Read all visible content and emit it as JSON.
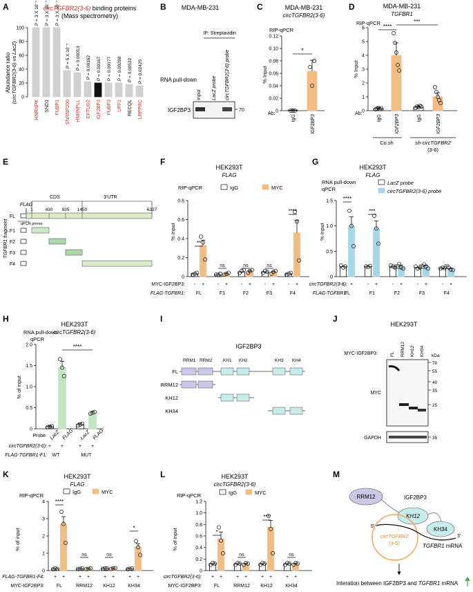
{
  "colors": {
    "orange": "#f2bd85",
    "green": "#c1e6c1",
    "blue": "#a7d7e6",
    "red": "#d7301f",
    "gray": "#d0d0d0",
    "black": "#111111",
    "cyan": "#c7ecec",
    "lavender": "#c9c8e6",
    "fragGreen": "#cfe8c8",
    "utrGreen": "#dcebc9"
  },
  "panels": {
    "A": {
      "letter": "A",
      "title_italic": "circTGFBR2(3-6)",
      "title_rest": " binding proteins",
      "title_line2": "(Mass spectrometry)",
      "ylabel1": "Abundance ratio",
      "ylabel2_italic": "(circTGFBR2(3-6)",
      "ylabel2_rest": " vs ",
      "ylabel2_lacz": "LacZ",
      "ylabel2_end": ")",
      "ticks": [
        "0",
        "20",
        "40",
        "60",
        "80",
        "100"
      ]
    },
    "B": {
      "letter": "B",
      "cell": "MDA-MB-231",
      "ip": "IP: Streptavidin",
      "lane_input": "Input",
      "lane_lacz": "LacZ probe",
      "lane_circ": "circTGFBR2(3-6) probe",
      "method": "RNA pull-down",
      "protein": "IGF2BP3",
      "marker": "70"
    },
    "C": {
      "letter": "C",
      "cell": "MDA-MB-231",
      "gene": "circTGFBR2(3-6)",
      "assay": "RIP-qPCR",
      "ylabel": "% Input",
      "ticks": [
        "0",
        "0.02",
        "0.04",
        "0.06",
        "0.08",
        "0.10",
        "0.12"
      ],
      "ab_label": "Ab:",
      "sig": "*",
      "categories": [
        "IgG",
        "IGF2BP3"
      ]
    },
    "D": {
      "letter": "D",
      "cell": "MDA-MB-231",
      "gene": "TGFBR1",
      "assay": "RIP-qPCR",
      "ylabel": "% Input",
      "ticks": [
        "0",
        "1",
        "2",
        "3",
        "4",
        "5",
        "6"
      ],
      "ab_label": "Ab:",
      "sig1": "****",
      "sig2": "***",
      "categories": [
        "IgG",
        "IGF2BP3",
        "IgG",
        "IGF2BP3"
      ],
      "group1": "Co.sh",
      "group2a": "sh-circTGFBR2",
      "group2b": "(3-6)"
    },
    "E": {
      "letter": "E",
      "flag": "FLAG",
      "cds": "CDS",
      "utr": "3'UTR",
      "positions": [
        "1",
        "430",
        "935",
        "1450",
        "6337"
      ],
      "primer": "qPCR primer",
      "fragments": [
        "FL",
        "F1",
        "F2",
        "F3",
        "F4"
      ],
      "side_label": "TGFBR1 fragment"
    },
    "F": {
      "letter": "F",
      "cell": "HEK293T",
      "gene": "FLAG",
      "assay": "RIP-qPCR",
      "legend": [
        "IgG",
        "MYC"
      ],
      "ylabel": "% Input",
      "ticks": [
        "0",
        "0.2",
        "0.4",
        "0.6",
        "0.8"
      ],
      "sig": [
        "**",
        "ns",
        "ns",
        "ns",
        "****"
      ],
      "row1_label": "MYC-IGF2BP3:",
      "row2_label": "FLAG-TGFBR1:",
      "groups": [
        "FL",
        "F1",
        "F2",
        "F3",
        "F4"
      ],
      "pm": [
        "-",
        "+"
      ]
    },
    "G": {
      "letter": "G",
      "cell": "HEK293T",
      "gene": "FLAG",
      "assay1": "RNA pull-down",
      "assay2": "qPCR",
      "legend": [
        "LacZ probe",
        "circTGFBR2(3-6) probe"
      ],
      "ylabel": "% Input",
      "ticks": [
        "0",
        "0.5",
        "1.0",
        "1.5"
      ],
      "sig": [
        "****",
        "***",
        "ns",
        "ns",
        "ns"
      ],
      "row1_label": "circTGFBR2(3-6):",
      "row2_label": "FLAG-TGFBR1:",
      "groups": [
        "FL",
        "F1",
        "F2",
        "F3",
        "F4"
      ],
      "pm": [
        "-",
        "+"
      ]
    },
    "H": {
      "letter": "H",
      "cell": "HEK293T",
      "gene": "circTGFBR2(3-6)",
      "assay1": "RNA pull-down",
      "assay2": "qPCR",
      "ylabel": "% of input",
      "ticks": [
        "0",
        "0.5",
        "1.0",
        "1.5",
        "2.0"
      ],
      "sig": "****",
      "probe_label": "Probe:",
      "probes": [
        "LacZ",
        "FLAG",
        "LacZ",
        "FLAG"
      ],
      "row1_label": "circTGFBR2(3-6):",
      "row2_label": "FLAG-TGFBR1-F1:",
      "groups": [
        "WT",
        "MUT"
      ],
      "pm": [
        "+",
        "+"
      ]
    },
    "I": {
      "letter": "I",
      "title": "IGF2BP3",
      "domains": [
        "RRM1",
        "RRM2",
        "KH1",
        "KH2",
        "KH3",
        "KH4"
      ],
      "constructs": [
        "FL",
        "RRM12",
        "KH12",
        "KH34"
      ]
    },
    "J": {
      "letter": "J",
      "cell": "HEK293T",
      "row_label": "MYC-IGF2BP3:",
      "lanes": [
        "FL",
        "RRM12",
        "KH12",
        "KH34"
      ],
      "kda": "kDa",
      "markers": [
        "70",
        "55",
        "40",
        "35",
        "25",
        "35"
      ],
      "blots": [
        "MYC",
        "GAPDH"
      ]
    },
    "K": {
      "letter": "K",
      "cell": "HEK293T",
      "gene": "FLAG",
      "assay": "RIP-qPCR",
      "legend": [
        "IgG",
        "MYC"
      ],
      "ylabel": "% of input",
      "ticks": [
        "0",
        "1",
        "2",
        "3",
        "4"
      ],
      "sig": [
        "****",
        "ns",
        "ns",
        "*"
      ],
      "row1_label": "FLAG-TGFBR1-F4:",
      "row2_label": "MYC-IGF2BP3:",
      "groups": [
        "FL",
        "RRM12",
        "KH12",
        "KH34"
      ],
      "pm": [
        "+",
        "+"
      ]
    },
    "L": {
      "letter": "L",
      "cell": "HEK293T",
      "gene": "circTGFBR2(3-6)",
      "assay": "RIP-qPCR",
      "legend": [
        "IgG",
        "MYC"
      ],
      "ylabel": "% of input",
      "ticks": [
        "0",
        "0.2",
        "0.4",
        "0.6",
        "0.8",
        "1.0",
        "1.2"
      ],
      "sig": [
        "*",
        "ns",
        "***",
        "ns"
      ],
      "row1_label": "circTGFBR2(3-6):",
      "row2_label": "MYC-IGF2BP3:",
      "groups": [
        "FL",
        "RRM12",
        "KH12",
        "KH34"
      ],
      "pm": [
        "+",
        "+"
      ]
    },
    "M": {
      "letter": "M",
      "rrm": "RRM12",
      "protein": "IGF2BP3",
      "kh12": "KH12",
      "kh34": "KH34",
      "circ1": "circTGFBR2",
      "circ2": "(3-6)",
      "five": "5'",
      "three": "3'",
      "mrna_italic": "TGFBR1",
      "mrna_rest": " mRNA",
      "result1": "Interation between IGF2BP3 and ",
      "result_italic": "TGFBR1",
      "result2": " mRNA"
    }
  },
  "chart_data": [
    {
      "panel": "A",
      "type": "bar",
      "title": "circTGFBR2(3-6) binding proteins (Mass spectrometry)",
      "ylabel": "Abundance ratio (circTGFBR2(3-6) vs LacZ)",
      "ylim": [
        0,
        100
      ],
      "categories": [
        "HNRNPK",
        "SND1",
        "FUBP1",
        "SNRNP200",
        "HNRNPLL",
        "EFTUD2",
        "IGF2BP3",
        "FUBP3",
        "UPF1",
        "RECQL",
        "LRPPRC"
      ],
      "values": [
        100,
        100,
        100,
        38,
        35,
        22,
        20,
        20,
        20,
        18,
        16
      ],
      "red_labels": [
        true,
        false,
        true,
        true,
        true,
        true,
        true,
        true,
        true,
        false,
        true
      ],
      "highlight": "IGF2BP3",
      "pvalues": [
        "P = 3 X 10⁻⁷",
        "P = 3 X 10⁻⁷",
        "P = 3 X 10⁻⁷",
        "P = 5 X 10⁻⁵",
        "P = 0.00013",
        "P = 0.00162",
        "P = 0.00167",
        "P = 0.00177",
        "P = 0.00298",
        "P = 0.00532",
        "P = 0.02425"
      ]
    },
    {
      "panel": "C",
      "type": "bar",
      "ylim": [
        0,
        0.12
      ],
      "categories": [
        "IgG",
        "IGF2BP3"
      ],
      "values": [
        0.0008,
        0.063
      ],
      "errors": [
        0.0004,
        0.018
      ],
      "points": [
        [
          0,
          0,
          0
        ],
        [
          0.07,
          0.04,
          0.08
        ]
      ]
    },
    {
      "panel": "D",
      "type": "bar",
      "ylim": [
        0,
        6
      ],
      "categories": [
        "IgG",
        "IGF2BP3",
        "IgG",
        "IGF2BP3"
      ],
      "values": [
        0.15,
        4.0,
        0.25,
        1.0
      ],
      "errors": [
        0.05,
        0.9,
        0.08,
        0.3
      ],
      "points": [
        [
          0.1,
          0.15,
          0.2,
          0.12,
          0.18
        ],
        [
          5.6,
          4.9,
          4.2,
          3.3,
          2.9
        ],
        [
          0.2,
          0.3,
          0.25,
          0.35,
          0.3
        ],
        [
          1.7,
          1.35,
          1.0,
          0.75,
          0.55
        ]
      ]
    },
    {
      "panel": "F",
      "type": "bar",
      "ylim": [
        0,
        0.8
      ],
      "categories": [
        "FL",
        "F1",
        "F2",
        "F3",
        "F4"
      ],
      "series": [
        {
          "name": "IgG",
          "values": [
            0.03,
            0.02,
            0.05,
            0.05,
            0.03
          ],
          "points": [
            [
              0.02,
              0.03,
              0.04
            ],
            [
              0.02,
              0.02,
              0.03
            ],
            [
              0.04,
              0.06,
              0.07
            ],
            [
              0.04,
              0.06,
              0.05
            ],
            [
              0.02,
              0.03,
              0.04
            ]
          ]
        },
        {
          "name": "MYC",
          "values": [
            0.33,
            0.03,
            0.05,
            0.05,
            0.46
          ],
          "points": [
            [
              0.42,
              0.36,
              0.18
            ],
            [
              0.02,
              0.03,
              0.04
            ],
            [
              0.04,
              0.06,
              0.07
            ],
            [
              0.03,
              0.05,
              0.06
            ],
            [
              0.68,
              0.58,
              0.17
            ]
          ]
        }
      ]
    },
    {
      "panel": "G",
      "type": "bar",
      "ylim": [
        0,
        1.5
      ],
      "categories": [
        "FL",
        "F1",
        "F2",
        "F3",
        "F4"
      ],
      "series": [
        {
          "name": "LacZ probe",
          "values": [
            0.2,
            0.2,
            0.2,
            0.18,
            0.17
          ],
          "points": [
            [
              0.22,
              0.18,
              0.2
            ],
            [
              0.2,
              0.19,
              0.21
            ],
            [
              0.22,
              0.2,
              0.18
            ],
            [
              0.2,
              0.16,
              0.18
            ],
            [
              0.16,
              0.18,
              0.17
            ]
          ]
        },
        {
          "name": "circTGFBR2(3-6) probe",
          "values": [
            1.0,
            0.95,
            0.2,
            0.2,
            0.15
          ],
          "points": [
            [
              1.3,
              1.0,
              0.6
            ],
            [
              1.2,
              0.95,
              0.65
            ],
            [
              0.25,
              0.18,
              0.16
            ],
            [
              0.24,
              0.2,
              0.16
            ],
            [
              0.18,
              0.14,
              0.13
            ]
          ]
        }
      ]
    },
    {
      "panel": "H",
      "type": "bar",
      "ylim": [
        0,
        2.0
      ],
      "categories": [
        "LacZ",
        "FLAG",
        "LacZ",
        "FLAG"
      ],
      "groups": [
        "WT",
        "MUT"
      ],
      "values": [
        0.05,
        1.45,
        0.1,
        0.38
      ],
      "errors": [
        0.02,
        0.15,
        0.04,
        0.03
      ],
      "points": [
        [
          0.04,
          0.05,
          0.06
        ],
        [
          1.65,
          1.45,
          1.25
        ],
        [
          0.08,
          0.1,
          0.12
        ],
        [
          0.36,
          0.38,
          0.4
        ]
      ]
    },
    {
      "panel": "K",
      "type": "bar",
      "ylim": [
        0,
        4
      ],
      "categories": [
        "FL",
        "RRM12",
        "KH12",
        "KH34"
      ],
      "series": [
        {
          "name": "IgG",
          "values": [
            0.1,
            0.1,
            0.12,
            0.1
          ],
          "points": [
            [
              0.08,
              0.12,
              0.1
            ],
            [
              0.09,
              0.1,
              0.12
            ],
            [
              0.1,
              0.13,
              0.12
            ],
            [
              0.08,
              0.1,
              0.12
            ]
          ]
        },
        {
          "name": "MYC",
          "values": [
            2.7,
            0.1,
            0.12,
            1.35
          ],
          "points": [
            [
              3.4,
              2.7,
              1.6
            ],
            [
              0.08,
              0.1,
              0.12
            ],
            [
              0.1,
              0.13,
              0.14
            ],
            [
              1.7,
              1.35,
              0.9
            ]
          ]
        }
      ]
    },
    {
      "panel": "L",
      "type": "bar",
      "ylim": [
        0,
        1.2
      ],
      "categories": [
        "FL",
        "RRM12",
        "KH12",
        "KH34"
      ],
      "series": [
        {
          "name": "IgG",
          "values": [
            0.12,
            0.12,
            0.12,
            0.12
          ],
          "points": [
            [
              0.1,
              0.13,
              0.12
            ],
            [
              0.1,
              0.13,
              0.12
            ],
            [
              0.1,
              0.13,
              0.12
            ],
            [
              0.1,
              0.13,
              0.12
            ]
          ]
        },
        {
          "name": "MYC",
          "values": [
            0.55,
            0.12,
            0.75,
            0.12
          ],
          "points": [
            [
              0.75,
              0.52,
              0.3
            ],
            [
              0.1,
              0.13,
              0.12
            ],
            [
              0.95,
              0.72,
              0.3
            ],
            [
              0.1,
              0.13,
              0.12
            ]
          ]
        }
      ]
    }
  ]
}
